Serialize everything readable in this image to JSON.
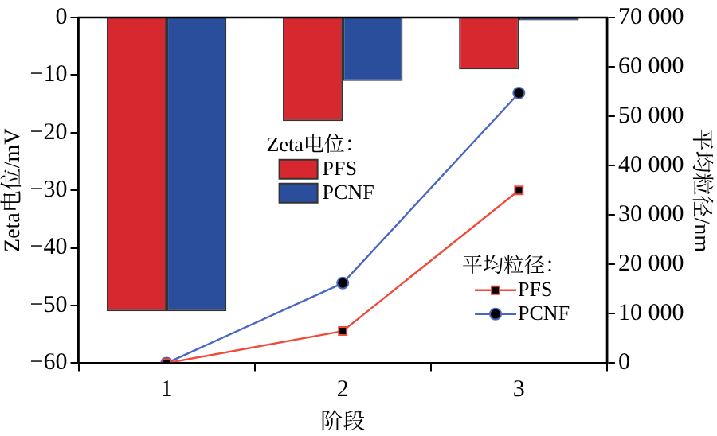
{
  "chart_data": {
    "type": "bar",
    "categories": [
      "1",
      "2",
      "3"
    ],
    "xlabel": "阶段",
    "ylabel": "Zeta电位/mV",
    "y2label": "平均粒径/nm",
    "series": [
      {
        "name": "PFS",
        "color": "#d8282f",
        "values": [
          -51,
          -18,
          -9
        ]
      },
      {
        "name": "PCNF",
        "color": "#2a4d9c",
        "values": [
          -51,
          -11,
          -0.5
        ]
      },
      {
        "name": "PFS",
        "type": "line",
        "axis": "y2",
        "color": "#f04a3a",
        "marker": "square",
        "values": [
          0,
          6500,
          35000
        ]
      },
      {
        "name": "PCNF",
        "type": "line",
        "axis": "y2",
        "color": "#4a68c0",
        "marker": "circle",
        "values": [
          0,
          16200,
          54700
        ]
      }
    ],
    "ylim": [
      -60,
      0
    ],
    "yticks": [
      -60,
      -50,
      -40,
      -30,
      -20,
      -10,
      0
    ],
    "y2lim": [
      0,
      70000
    ],
    "y2ticks": [
      {
        "value": 0,
        "label": "0"
      },
      {
        "value": 10000,
        "label": "10 000"
      },
      {
        "value": 20000,
        "label": "20 000"
      },
      {
        "value": 30000,
        "label": "30 000"
      },
      {
        "value": 40000,
        "label": "40 000"
      },
      {
        "value": 50000,
        "label": "50 000"
      },
      {
        "value": 60000,
        "label": "60 000"
      },
      {
        "value": 70000,
        "label": "70 000"
      }
    ],
    "annotations": [
      "Zeta电位：",
      "平均粒径："
    ],
    "legend": "right",
    "grid": false,
    "line_style": "solid"
  }
}
